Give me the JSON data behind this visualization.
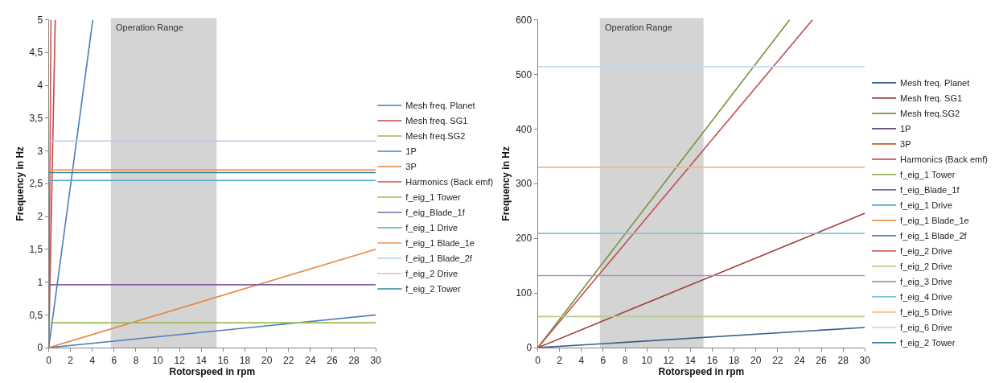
{
  "chart_data": [
    {
      "type": "line",
      "xlabel": "Rotorspeed in rpm",
      "ylabel": "Frequency in Hz",
      "xlim": [
        0,
        30
      ],
      "xticks": [
        0,
        2,
        4,
        6,
        8,
        10,
        12,
        14,
        16,
        18,
        20,
        22,
        24,
        26,
        28,
        30
      ],
      "ylim": [
        0,
        5
      ],
      "yticks": [
        0,
        {
          "value": 0.5,
          "label": "0,5"
        },
        1,
        {
          "value": 1.5,
          "label": "1,5"
        },
        2,
        {
          "value": 2.5,
          "label": "2,5"
        },
        3,
        {
          "value": 3.5,
          "label": "3,5"
        },
        4,
        {
          "value": 4.5,
          "label": "4,5"
        },
        5
      ],
      "grid": false,
      "legend": "right",
      "marker": "none",
      "line_style": "solid",
      "bands": [
        {
          "axis": "x",
          "from": 5.7,
          "to": 15.4,
          "label": "Operation Range",
          "color": "#d4d4d4"
        }
      ],
      "series": [
        {
          "name": "Mesh freq. Planet",
          "color": "#4a7ebb",
          "x": [
            0,
            4.05
          ],
          "values": [
            0,
            5
          ]
        },
        {
          "name": "Mesh freq. SG1",
          "color": "#be4b48",
          "x": [
            0,
            0.6
          ],
          "values": [
            0,
            5
          ]
        },
        {
          "name": "Mesh freq.SG2",
          "color": "#98b954"
        },
        {
          "name": "1P",
          "color": "#4f81bd",
          "x": [
            0,
            30
          ],
          "values": [
            0,
            0.5
          ]
        },
        {
          "name": "3P",
          "color": "#e8863f",
          "x": [
            0,
            30
          ],
          "values": [
            0,
            1.5
          ]
        },
        {
          "name": "Harmonics (Back emf)",
          "color": "#d9534f",
          "x": [
            0,
            0.21
          ],
          "values": [
            0,
            5
          ]
        },
        {
          "name": "f_eig_1 Tower",
          "color": "#9bbb59",
          "x": [
            0,
            30
          ],
          "values": [
            0.38,
            0.38
          ]
        },
        {
          "name": "f_eig_Blade_1f",
          "color": "#8064a2",
          "x": [
            0,
            30
          ],
          "values": [
            0.96,
            0.96
          ]
        },
        {
          "name": "f_eig_1 Drive",
          "color": "#4bacc6",
          "x": [
            0,
            30
          ],
          "values": [
            2.55,
            2.55
          ]
        },
        {
          "name": "f_eig_1 Blade_1e",
          "color": "#f79646",
          "x": [
            0,
            30
          ],
          "values": [
            2.71,
            2.71
          ]
        },
        {
          "name": "f_eig_1 Blade_2f",
          "color": "#b9cde5",
          "x": [
            0,
            30
          ],
          "values": [
            3.15,
            3.15
          ]
        },
        {
          "name": "f_eig_2 Drive",
          "color": "#e6b9b8"
        },
        {
          "name": "f_eig_2 Tower",
          "color": "#31859c",
          "x": [
            0,
            30
          ],
          "values": [
            2.67,
            2.67
          ]
        }
      ]
    },
    {
      "type": "line",
      "xlabel": "Rotorspeed in rpm",
      "ylabel": "Frequency in Hz",
      "xlim": [
        0,
        30
      ],
      "xticks": [
        0,
        2,
        4,
        6,
        8,
        10,
        12,
        14,
        16,
        18,
        20,
        22,
        24,
        26,
        28,
        30
      ],
      "ylim": [
        0,
        600
      ],
      "yticks": [
        0,
        100,
        200,
        300,
        400,
        500,
        600
      ],
      "grid": false,
      "legend": "right",
      "marker": "none",
      "line_style": "solid",
      "bands": [
        {
          "axis": "x",
          "from": 5.7,
          "to": 15.2,
          "label": "Operation Range",
          "color": "#d4d4d4"
        }
      ],
      "series": [
        {
          "name": "Mesh freq. Planet",
          "color": "#3a5f8f",
          "x": [
            0,
            30
          ],
          "values": [
            0,
            37
          ]
        },
        {
          "name": "Mesh freq. SG1",
          "color": "#a0403c",
          "x": [
            0,
            30
          ],
          "values": [
            0,
            246
          ]
        },
        {
          "name": "Mesh freq.SG2",
          "color": "#77933c",
          "x": [
            0,
            23.1
          ],
          "values": [
            0,
            600
          ]
        },
        {
          "name": "1P",
          "color": "#604a7b"
        },
        {
          "name": "3P",
          "color": "#c0652b"
        },
        {
          "name": "Harmonics (Back emf)",
          "color": "#c0504d",
          "x": [
            0,
            25.2
          ],
          "values": [
            0,
            600
          ]
        },
        {
          "name": "f_eig_1 Tower",
          "color": "#9bbb59"
        },
        {
          "name": "f_eig_Blade_1f",
          "color": "#8064a2"
        },
        {
          "name": "f_eig_1 Drive",
          "color": "#4bacc6"
        },
        {
          "name": "f_eig_1 Blade_1e",
          "color": "#f79646"
        },
        {
          "name": "f_eig_1 Blade_2f",
          "color": "#4f81bd"
        },
        {
          "name": "f_eig_2 Drive",
          "color": "#d9605a"
        },
        {
          "name": "f_eig_2 Drive",
          "color": "#b5d08a",
          "x": [
            0,
            30
          ],
          "values": [
            57,
            57
          ]
        },
        {
          "name": "f_eig_3 Drive",
          "color": "#a692c2",
          "x": [
            0,
            30
          ],
          "values": [
            132,
            132
          ]
        },
        {
          "name": "f_eig_4 Drive",
          "color": "#7fc6d9",
          "x": [
            0,
            30
          ],
          "values": [
            209,
            209
          ]
        },
        {
          "name": "f_eig_5 Drive",
          "color": "#fab584",
          "x": [
            0,
            30
          ],
          "values": [
            330,
            330
          ]
        },
        {
          "name": "f_eig_6 Drive",
          "color": "#c6d9f1",
          "x": [
            0,
            30
          ],
          "values": [
            514,
            514
          ]
        },
        {
          "name": "f_eig_2 Tower",
          "color": "#31859c"
        }
      ]
    }
  ]
}
